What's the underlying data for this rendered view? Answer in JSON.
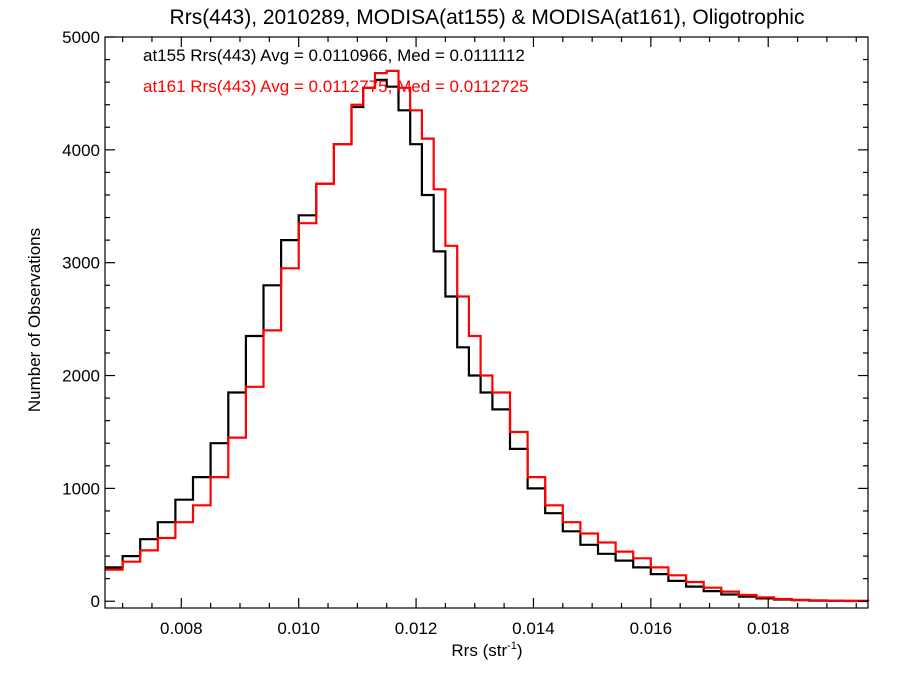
{
  "chart_data": {
    "type": "line",
    "style": "histogram-step",
    "title": "Rrs(443), 2010289, MODISA(at155) & MODISA(at161), Oligotrophic",
    "xlabel": "Rrs (str",
    "xlabel_sup": "-1",
    "xlabel_suffix": ")",
    "ylabel": "Number of Observations",
    "xlim": [
      0.0067,
      0.0197
    ],
    "ylim": [
      -60,
      5000
    ],
    "xticks": [
      {
        "value": 0.008,
        "label": "0.008"
      },
      {
        "value": 0.01,
        "label": "0.010"
      },
      {
        "value": 0.012,
        "label": "0.012"
      },
      {
        "value": 0.014,
        "label": "0.014"
      },
      {
        "value": 0.016,
        "label": "0.016"
      },
      {
        "value": 0.018,
        "label": "0.018"
      }
    ],
    "yticks": [
      {
        "value": 0,
        "label": "0"
      },
      {
        "value": 1000,
        "label": "1000"
      },
      {
        "value": 2000,
        "label": "2000"
      },
      {
        "value": 3000,
        "label": "3000"
      },
      {
        "value": 4000,
        "label": "4000"
      },
      {
        "value": 5000,
        "label": "5000"
      }
    ],
    "grid": false,
    "legend_position": "top-left",
    "series": [
      {
        "name": "at155",
        "legend_text": "at155 Rrs(443) Avg = 0.0110966, Med = 0.0111112",
        "color": "#000000",
        "x": [
          0.0067,
          0.007,
          0.0073,
          0.0076,
          0.0079,
          0.0082,
          0.0085,
          0.0088,
          0.0091,
          0.0094,
          0.0097,
          0.01,
          0.0103,
          0.0106,
          0.0109,
          0.0111,
          0.0113,
          0.0115,
          0.0117,
          0.0119,
          0.0121,
          0.0123,
          0.0125,
          0.0127,
          0.0129,
          0.0131,
          0.0133,
          0.0136,
          0.0139,
          0.0142,
          0.0145,
          0.0148,
          0.0151,
          0.0154,
          0.0157,
          0.016,
          0.0163,
          0.0166,
          0.0169,
          0.0172,
          0.0175,
          0.0178,
          0.0181,
          0.0184,
          0.0187,
          0.019,
          0.0193,
          0.0197
        ],
        "y": [
          300,
          400,
          550,
          700,
          900,
          1100,
          1400,
          1850,
          2350,
          2800,
          3200,
          3420,
          3700,
          4050,
          4380,
          4550,
          4620,
          4560,
          4350,
          4050,
          3600,
          3100,
          2700,
          2250,
          2000,
          1850,
          1700,
          1350,
          1000,
          780,
          620,
          500,
          420,
          360,
          300,
          240,
          180,
          130,
          90,
          60,
          40,
          25,
          15,
          10,
          6,
          4,
          2,
          0
        ]
      },
      {
        "name": "at161",
        "legend_text": "at161 Rrs(443) Avg = 0.0112775, Med = 0.0112725",
        "color": "#ff0000",
        "x": [
          0.0067,
          0.007,
          0.0073,
          0.0076,
          0.0079,
          0.0082,
          0.0085,
          0.0088,
          0.0091,
          0.0094,
          0.0097,
          0.01,
          0.0103,
          0.0106,
          0.0109,
          0.0111,
          0.0113,
          0.0115,
          0.0117,
          0.0119,
          0.0121,
          0.0123,
          0.0125,
          0.0127,
          0.0129,
          0.0131,
          0.0133,
          0.0136,
          0.0139,
          0.0142,
          0.0145,
          0.0148,
          0.0151,
          0.0154,
          0.0157,
          0.016,
          0.0163,
          0.0166,
          0.0169,
          0.0172,
          0.0175,
          0.0178,
          0.0181,
          0.0184,
          0.0187,
          0.019,
          0.0193,
          0.0197
        ],
        "y": [
          280,
          350,
          450,
          560,
          700,
          850,
          1100,
          1450,
          1900,
          2400,
          2950,
          3350,
          3700,
          4050,
          4400,
          4550,
          4680,
          4700,
          4550,
          4350,
          4100,
          3650,
          3150,
          2700,
          2350,
          2000,
          1850,
          1500,
          1100,
          850,
          700,
          600,
          520,
          440,
          380,
          300,
          230,
          170,
          120,
          85,
          55,
          35,
          20,
          12,
          8,
          5,
          3,
          0
        ]
      }
    ]
  }
}
